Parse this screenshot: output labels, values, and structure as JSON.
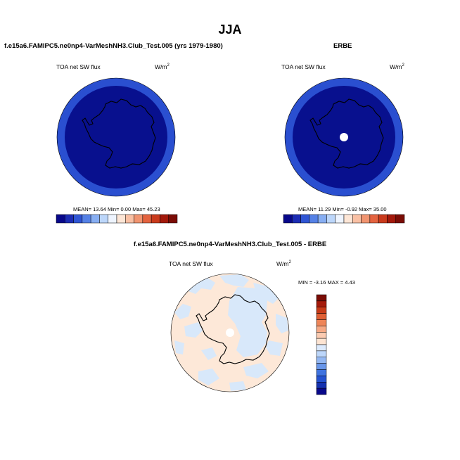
{
  "page": {
    "main_title": "JJA"
  },
  "panels": {
    "model": {
      "title": "f.e15a6.FAMIPC5.ne0np4-VarMeshNH3.Club_Test.005 (yrs 1979-1980)",
      "variable": "TOA net SW flux",
      "units": "W/m",
      "units_exp": "2",
      "stats": "MEAN=  13.64  Min=   0.00  Max=  45.23"
    },
    "obs": {
      "title": "ERBE",
      "variable": "TOA net SW flux",
      "units": "W/m",
      "units_exp": "2",
      "stats": "MEAN=  11.29  Min=  -0.92  Max=  35.00"
    },
    "diff": {
      "title": "f.e15a6.FAMIPC5.ne0np4-VarMeshNH3.Club_Test.005 - ERBE",
      "variable": "TOA net SW flux",
      "units": "W/m",
      "units_exp": "2",
      "stats": "MIN =  -3.16 MAX =   4.43"
    }
  },
  "colorbars": {
    "abs": {
      "colors": [
        "#08088a",
        "#1c2cb4",
        "#2f55d4",
        "#5581e6",
        "#87aef2",
        "#bcd6fa",
        "#eef4fe",
        "#fde6d6",
        "#f9c0a4",
        "#f19470",
        "#e4633f",
        "#c93a1c",
        "#a3190b",
        "#7a0c05"
      ],
      "ticks": [
        "25",
        "75",
        "125",
        "175",
        "225",
        "275",
        "325",
        "375"
      ]
    },
    "diff": {
      "colors": [
        "#08088a",
        "#1431b0",
        "#2452d0",
        "#3f73e0",
        "#6896ea",
        "#93b7f2",
        "#bcd6fa",
        "#dceafd",
        "#fde4d2",
        "#fbcbb1",
        "#f6a985",
        "#ee8558",
        "#e05f34",
        "#c73a17",
        "#a51a0a",
        "#7a0c05"
      ],
      "ticks": [
        "60",
        "40",
        "30",
        "20",
        "15",
        "10",
        "5",
        "0",
        "-5",
        "-10",
        "-15",
        "-20",
        "-30",
        "-40",
        "-60"
      ]
    }
  },
  "map_colors": {
    "abs_outer_ring": "#2a4fd0",
    "abs_interior": "#08108e",
    "diff_positive": "#fde8d8",
    "diff_negative": "#d8e8fa",
    "missing": "#ffffff",
    "coast": "#000000"
  }
}
